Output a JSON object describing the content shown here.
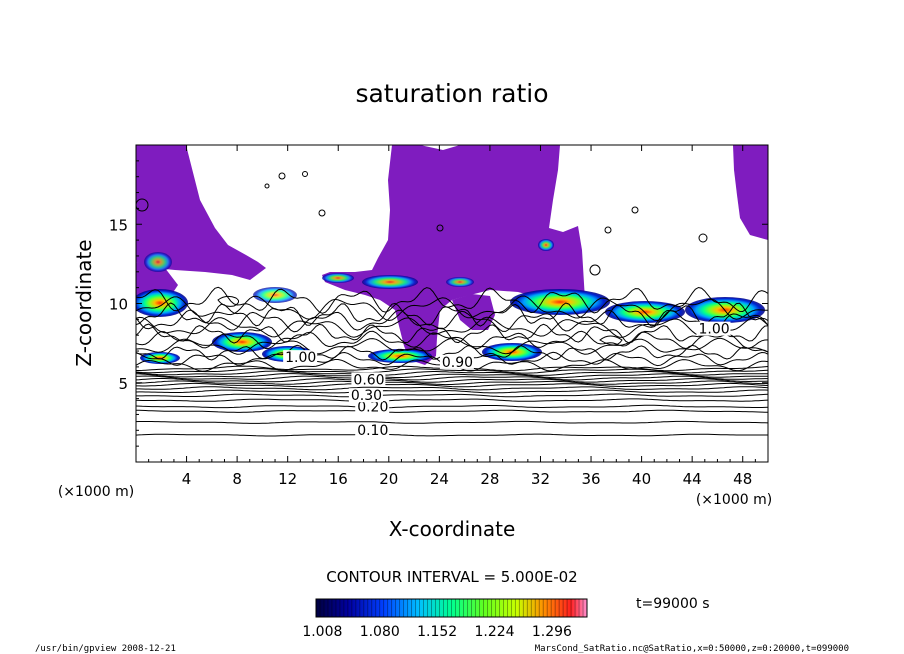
{
  "chart_data": {
    "type": "contour",
    "title": "saturation ratio",
    "xlabel": "X-coordinate",
    "ylabel": "Z-coordinate",
    "x_unit": "(×1000 m)",
    "y_unit": "(×1000 m)",
    "xlim": [
      0,
      50
    ],
    "ylim": [
      0,
      20
    ],
    "x_ticks": [
      4,
      8,
      12,
      16,
      20,
      24,
      28,
      32,
      36,
      40,
      44,
      48
    ],
    "y_ticks": [
      5,
      10,
      15
    ],
    "contour_labels": [
      {
        "text": "0.10",
        "x": 17.5,
        "y": 1.7
      },
      {
        "text": "0.20",
        "x": 17.5,
        "y": 3.2
      },
      {
        "text": "0.30",
        "x": 17.0,
        "y": 3.9
      },
      {
        "text": "0.60",
        "x": 17.2,
        "y": 4.9
      },
      {
        "text": "0.90",
        "x": 24.2,
        "y": 6.0
      },
      {
        "text": "1.00",
        "x": 11.8,
        "y": 6.3
      },
      {
        "text": "1.00",
        "x": 44.5,
        "y": 8.1
      }
    ],
    "contour_interval_text": "CONTOUR INTERVAL = 5.000E-02",
    "colorbar": {
      "min": 1.0,
      "max": 1.34,
      "tick_labels": [
        "1.008",
        "1.080",
        "1.152",
        "1.224",
        "1.296"
      ],
      "tick_values": [
        1.008,
        1.08,
        1.152,
        1.224,
        1.296
      ]
    },
    "time_label": "t=99000 s",
    "footer_left": "/usr/bin/gpview   2008-12-21",
    "footer_right": "MarsCond_SatRatio.nc@SatRatio,x=0:50000,z=0:20000,t=099000",
    "colors": {
      "supersaturated_fill": "#7f1cbf",
      "colormap": [
        "#000040",
        "#000090",
        "#0020ff",
        "#00b0ff",
        "#00ffa0",
        "#40ff20",
        "#c8ff00",
        "#ffa000",
        "#ff3000",
        "#ff80c0"
      ]
    }
  }
}
